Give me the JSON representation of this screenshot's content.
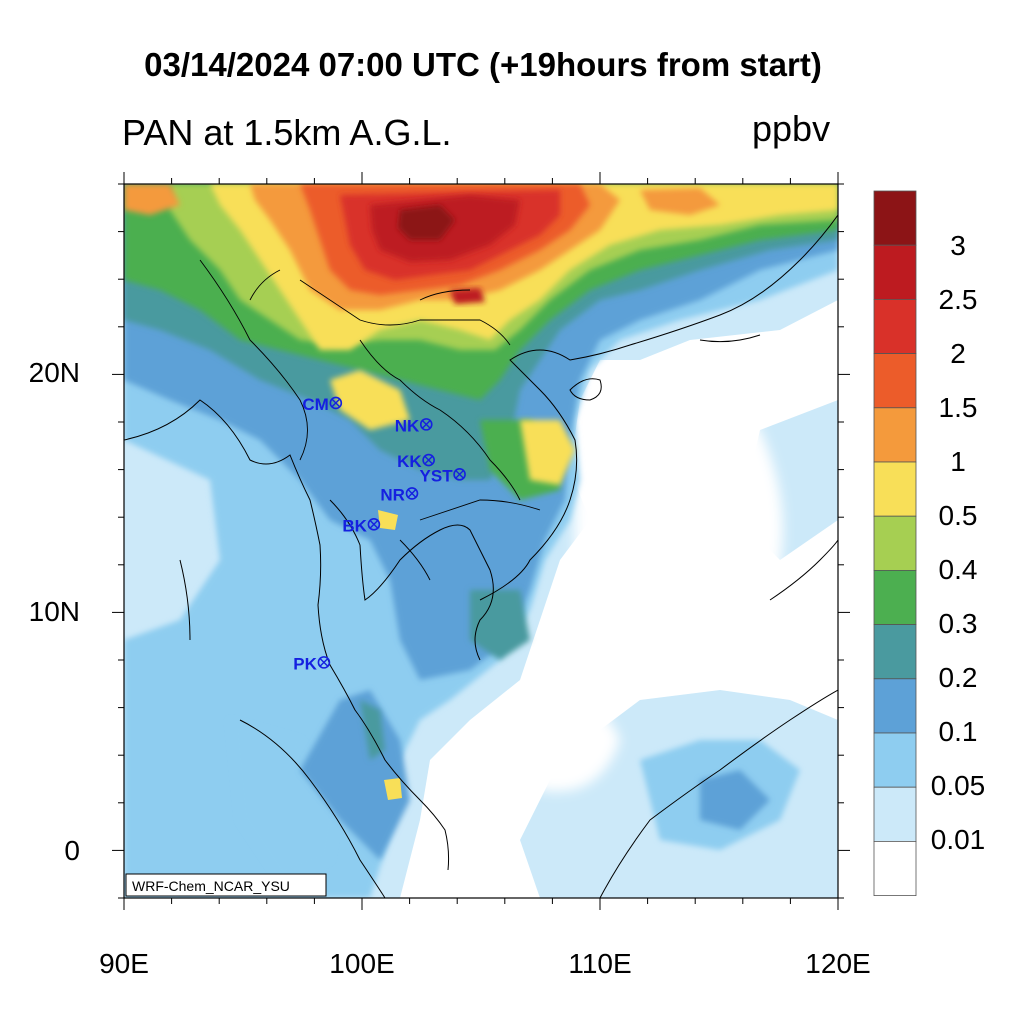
{
  "title": "03/14/2024 07:00 UTC (+19hours from start)",
  "subtitle": "PAN at 1.5km A.G.L.",
  "units": "ppbv",
  "credit": "WRF-Chem_NCAR_YSU",
  "axes": {
    "x_ticks": [
      "90E",
      "100E",
      "110E",
      "120E"
    ],
    "y_ticks": [
      "20N",
      "10N",
      "0"
    ]
  },
  "colorbar": {
    "levels": [
      "3",
      "2.5",
      "2",
      "1.5",
      "1",
      "0.5",
      "0.4",
      "0.3",
      "0.2",
      "0.1",
      "0.05",
      "0.01"
    ],
    "colors": [
      "#ffffff",
      "#cce9f9",
      "#8ecdf0",
      "#5da1d7",
      "#4a9a9f",
      "#4caf50",
      "#a6cf52",
      "#f8df58",
      "#f49a3c",
      "#ec5c2a",
      "#d93129",
      "#bd1b20",
      "#8c1416"
    ]
  },
  "stations": [
    {
      "label": "CM",
      "lon": 98.9,
      "lat": 18.8
    },
    {
      "label": "NK",
      "lon": 102.7,
      "lat": 17.9
    },
    {
      "label": "KK",
      "lon": 102.8,
      "lat": 16.4
    },
    {
      "label": "YST",
      "lon": 104.1,
      "lat": 15.8
    },
    {
      "label": "NR",
      "lon": 102.1,
      "lat": 15.0
    },
    {
      "label": "BK",
      "lon": 100.5,
      "lat": 13.7
    },
    {
      "label": "PK",
      "lon": 98.4,
      "lat": 7.9
    }
  ],
  "colors": {
    "station": "#1520e0"
  }
}
